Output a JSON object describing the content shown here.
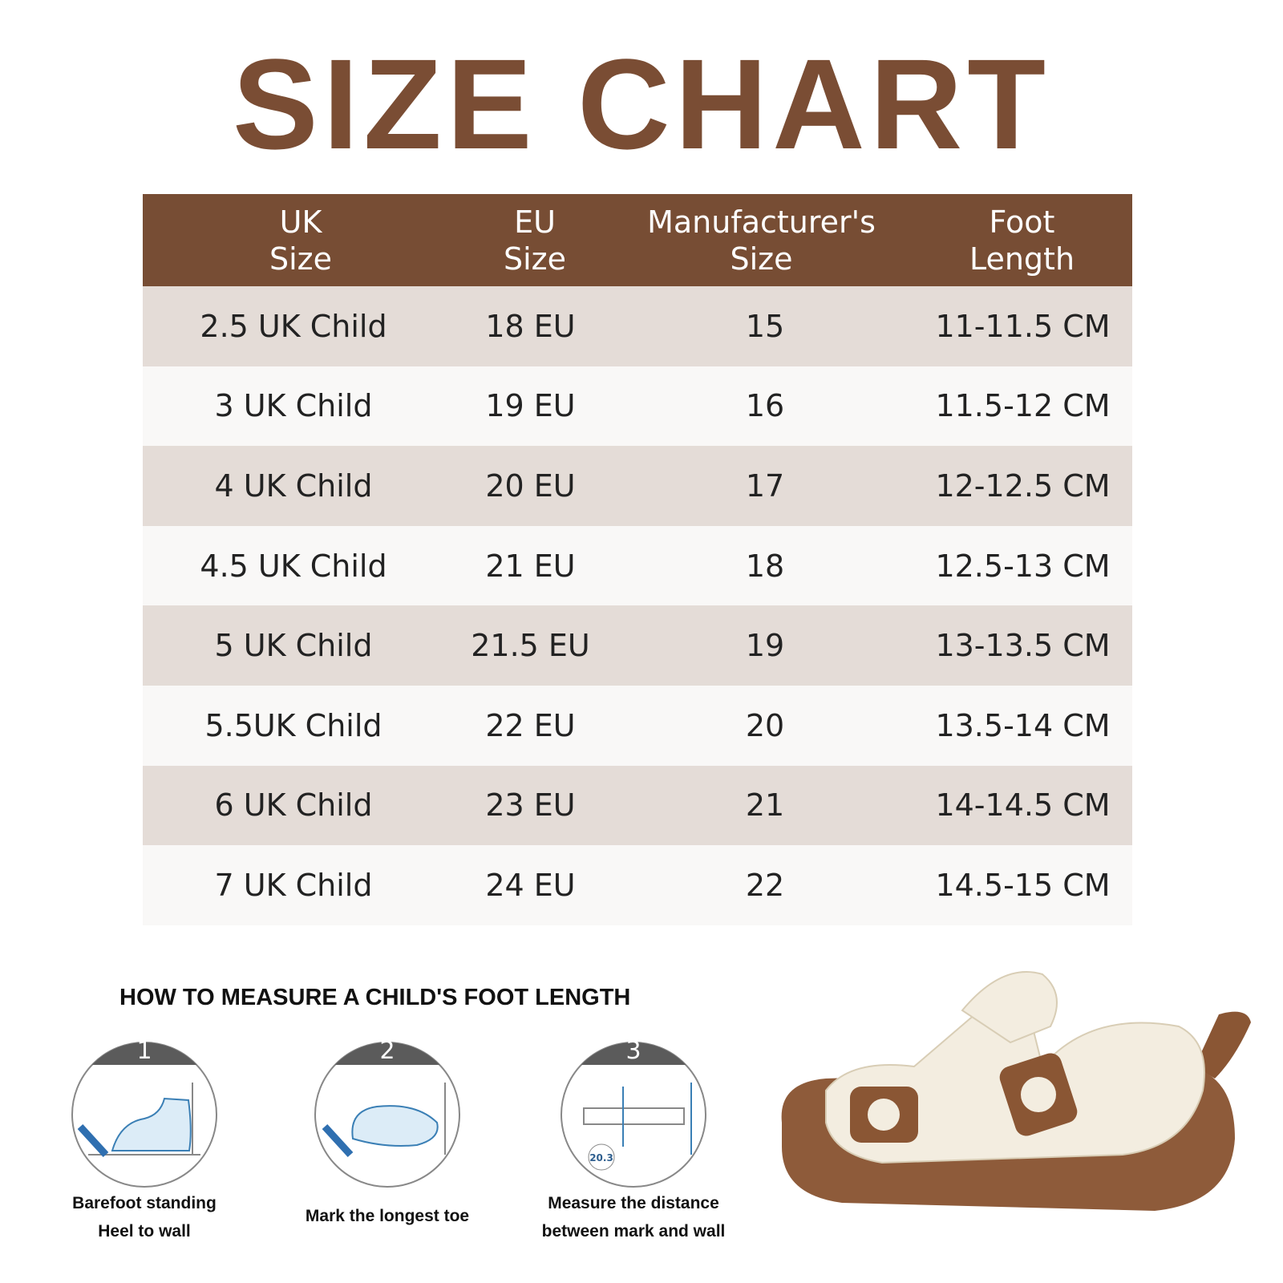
{
  "title": "SIZE CHART",
  "table": {
    "headers": [
      [
        "UK",
        "Size"
      ],
      [
        "EU",
        "Size"
      ],
      [
        "Manufacturer's",
        "Size"
      ],
      [
        "Foot",
        "Length"
      ]
    ],
    "rows": [
      [
        "2.5 UK Child",
        "18 EU",
        "15",
        "11-11.5 CM"
      ],
      [
        "3 UK Child",
        "19 EU",
        "16",
        "11.5-12 CM"
      ],
      [
        "4 UK Child",
        "20 EU",
        "17",
        "12-12.5 CM"
      ],
      [
        "4.5 UK Child",
        "21 EU",
        "18",
        "12.5-13 CM"
      ],
      [
        "5 UK Child",
        "21.5 EU",
        "19",
        "13-13.5 CM"
      ],
      [
        "5.5UK Child",
        "22 EU",
        "20",
        "13.5-14 CM"
      ],
      [
        "6 UK Child",
        "23 EU",
        "21",
        "14-14.5 CM"
      ],
      [
        "7 UK Child",
        "24 EU",
        "22",
        "14.5-15 CM"
      ]
    ]
  },
  "measure": {
    "heading": "HOW TO MEASURE A CHILD'S FOOT LENGTH",
    "steps": [
      {
        "number": "1",
        "caption": [
          "Barefoot standing",
          "Heel to wall"
        ]
      },
      {
        "number": "2",
        "caption": [
          "Mark the longest toe"
        ]
      },
      {
        "number": "3",
        "caption": [
          "Measure the distance",
          "between mark and wall"
        ],
        "reading": "20.3"
      }
    ]
  }
}
